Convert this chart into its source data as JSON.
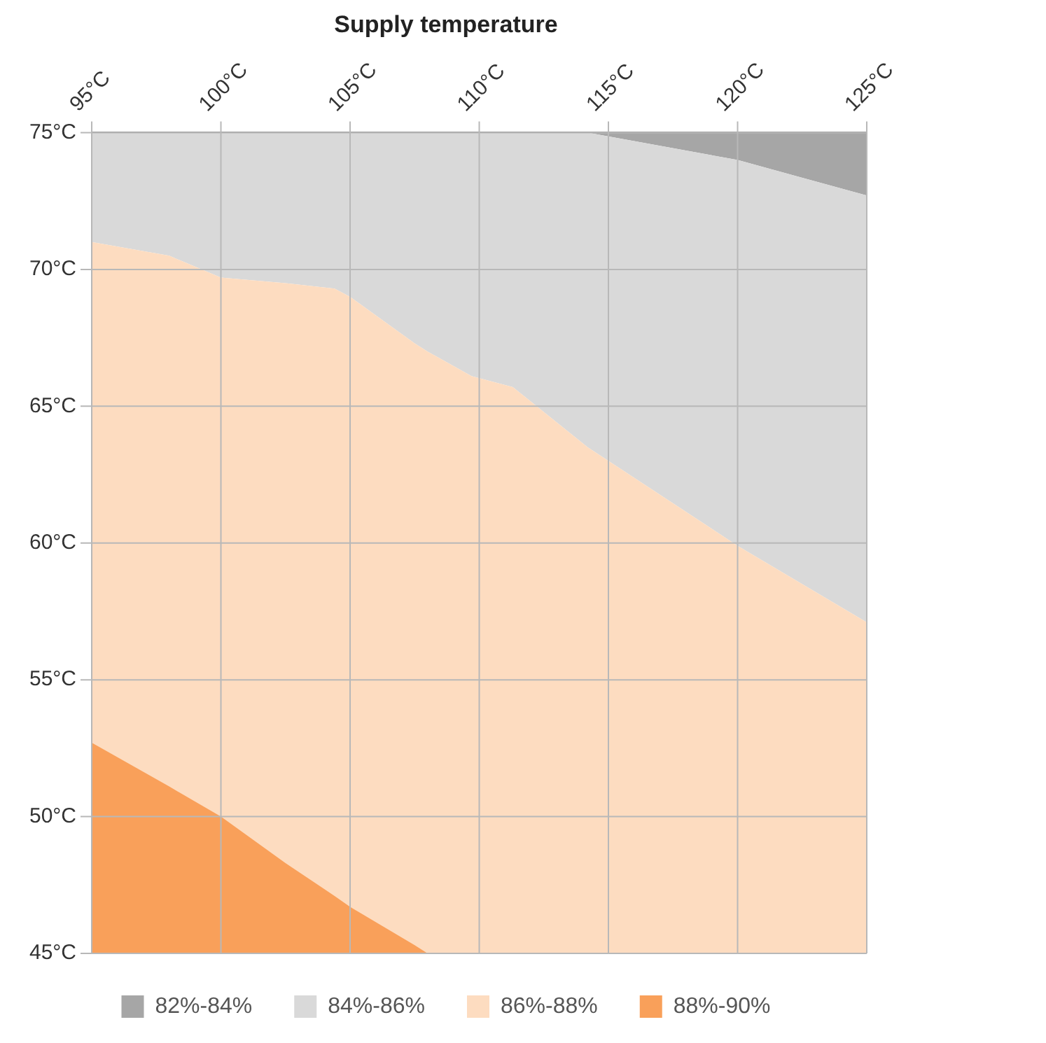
{
  "chart_data": {
    "type": "area",
    "title": "Supply temperature",
    "xlim": [
      95,
      125
    ],
    "ylim": [
      45,
      75
    ],
    "xticks": [
      {
        "value": 95,
        "label": "95°C"
      },
      {
        "value": 100,
        "label": "100°C"
      },
      {
        "value": 105,
        "label": "105°C"
      },
      {
        "value": 110,
        "label": "110°C"
      },
      {
        "value": 115,
        "label": "115°C"
      },
      {
        "value": 120,
        "label": "120°C"
      },
      {
        "value": 125,
        "label": "125°C"
      }
    ],
    "yticks": [
      {
        "value": 45,
        "label": "45°C"
      },
      {
        "value": 50,
        "label": "50°C"
      },
      {
        "value": 55,
        "label": "55°C"
      },
      {
        "value": 60,
        "label": "60°C"
      },
      {
        "value": 65,
        "label": "65°C"
      },
      {
        "value": 70,
        "label": "70°C"
      },
      {
        "value": 75,
        "label": "75°C"
      }
    ],
    "x": [
      95,
      98,
      100,
      102.5,
      104.4,
      105,
      107.5,
      108,
      109.7,
      111.3,
      114.2,
      120,
      125
    ],
    "grid": true,
    "legend": "bottom",
    "marker": "none",
    "series": [
      {
        "name": "82%-84%",
        "color": "#a6a6a6",
        "values": [
          null,
          null,
          null,
          null,
          null,
          null,
          null,
          null,
          null,
          null,
          75,
          75,
          75
        ]
      },
      {
        "name": "84%-86%",
        "color": "#d9d9d9",
        "values": [
          75,
          75,
          75,
          75,
          75,
          75,
          75,
          75,
          75,
          75,
          75,
          74,
          72.7
        ]
      },
      {
        "name": "86%-88%",
        "color": "#fddcc0",
        "values": [
          71,
          70.5,
          69.7,
          69.5,
          69.3,
          69,
          67.3,
          67,
          66.1,
          65.7,
          63.5,
          59.9,
          57.1
        ]
      },
      {
        "name": "88%-90%",
        "color": "#f9a05a",
        "values": [
          52.7,
          51.1,
          50,
          48.3,
          47.1,
          46.7,
          45.3,
          45,
          null,
          null,
          null,
          null,
          null
        ]
      }
    ]
  }
}
